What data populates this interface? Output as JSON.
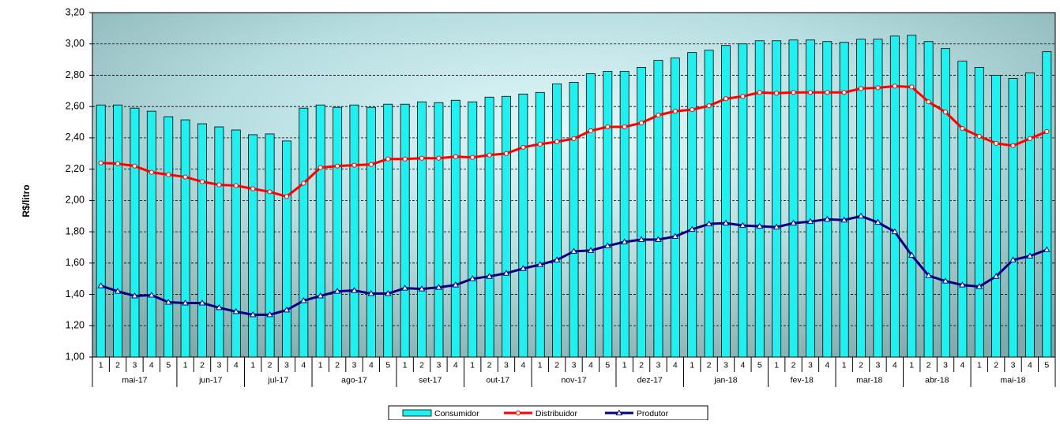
{
  "chart_data": {
    "type": "bar_line",
    "y_label": "R$/litro",
    "ylim": [
      1.0,
      3.2
    ],
    "yticks": [
      {
        "value": 1.0,
        "label": "1,00"
      },
      {
        "value": 1.2,
        "label": "1,20"
      },
      {
        "value": 1.4,
        "label": "1,40"
      },
      {
        "value": 1.6,
        "label": "1,60"
      },
      {
        "value": 1.8,
        "label": "1,80"
      },
      {
        "value": 2.0,
        "label": "2,00"
      },
      {
        "value": 2.2,
        "label": "2,20"
      },
      {
        "value": 2.4,
        "label": "2,40"
      },
      {
        "value": 2.6,
        "label": "2,60"
      },
      {
        "value": 2.8,
        "label": "2,80"
      },
      {
        "value": 3.0,
        "label": "3,00"
      },
      {
        "value": 3.2,
        "label": "3,20"
      }
    ],
    "grid": true,
    "category_groups": [
      {
        "name": "mai-17",
        "categories": [
          "1",
          "2",
          "3",
          "4",
          "5"
        ]
      },
      {
        "name": "jun-17",
        "categories": [
          "1",
          "2",
          "3",
          "4"
        ]
      },
      {
        "name": "jul-17",
        "categories": [
          "1",
          "2",
          "3",
          "4"
        ]
      },
      {
        "name": "ago-17",
        "categories": [
          "1",
          "2",
          "3",
          "4",
          "5"
        ]
      },
      {
        "name": "set-17",
        "categories": [
          "1",
          "2",
          "3",
          "4"
        ]
      },
      {
        "name": "out-17",
        "categories": [
          "1",
          "2",
          "3",
          "4"
        ]
      },
      {
        "name": "nov-17",
        "categories": [
          "1",
          "2",
          "3",
          "4",
          "5"
        ]
      },
      {
        "name": "dez-17",
        "categories": [
          "1",
          "2",
          "3",
          "4"
        ]
      },
      {
        "name": "jan-18",
        "categories": [
          "1",
          "2",
          "3",
          "4",
          "5"
        ]
      },
      {
        "name": "fev-18",
        "categories": [
          "1",
          "2",
          "3",
          "4"
        ]
      },
      {
        "name": "mar-18",
        "categories": [
          "1",
          "2",
          "3",
          "4"
        ]
      },
      {
        "name": "abr-18",
        "categories": [
          "1",
          "2",
          "3",
          "4"
        ]
      },
      {
        "name": "mai-18",
        "categories": [
          "1",
          "2",
          "3",
          "4",
          "5"
        ]
      }
    ],
    "series": [
      {
        "name": "Consumidor",
        "type": "bar",
        "color": "#22f0f0",
        "values": [
          2.61,
          2.61,
          2.59,
          2.57,
          2.535,
          2.515,
          2.49,
          2.47,
          2.45,
          2.42,
          2.425,
          2.38,
          2.59,
          2.61,
          2.595,
          2.61,
          2.595,
          2.615,
          2.615,
          2.63,
          2.625,
          2.64,
          2.63,
          2.66,
          2.665,
          2.68,
          2.69,
          2.745,
          2.755,
          2.81,
          2.825,
          2.825,
          2.85,
          2.895,
          2.91,
          2.945,
          2.96,
          2.99,
          3.0,
          3.02,
          3.02,
          3.025,
          3.025,
          3.015,
          3.01,
          3.03,
          3.03,
          3.05,
          3.055,
          3.015,
          2.97,
          2.89,
          2.85,
          2.8,
          2.78,
          2.815,
          2.95
        ]
      },
      {
        "name": "Distribuidor",
        "type": "line",
        "marker": "circle",
        "color": "#ff0000",
        "values": [
          2.24,
          2.235,
          2.22,
          2.18,
          2.165,
          2.15,
          2.12,
          2.1,
          2.095,
          2.075,
          2.055,
          2.025,
          2.11,
          2.21,
          2.22,
          2.225,
          2.23,
          2.265,
          2.265,
          2.27,
          2.27,
          2.28,
          2.275,
          2.29,
          2.3,
          2.34,
          2.36,
          2.375,
          2.395,
          2.445,
          2.47,
          2.47,
          2.495,
          2.545,
          2.57,
          2.58,
          2.605,
          2.65,
          2.665,
          2.69,
          2.685,
          2.69,
          2.69,
          2.69,
          2.69,
          2.715,
          2.72,
          2.73,
          2.725,
          2.63,
          2.565,
          2.46,
          2.41,
          2.365,
          2.35,
          2.395,
          2.44
        ]
      },
      {
        "name": "Produtor",
        "type": "line",
        "marker": "triangle",
        "color": "#000080",
        "values": [
          1.455,
          1.42,
          1.39,
          1.395,
          1.35,
          1.345,
          1.345,
          1.315,
          1.29,
          1.27,
          1.27,
          1.3,
          1.36,
          1.39,
          1.42,
          1.425,
          1.405,
          1.405,
          1.44,
          1.435,
          1.445,
          1.46,
          1.5,
          1.515,
          1.535,
          1.565,
          1.59,
          1.62,
          1.675,
          1.68,
          1.71,
          1.735,
          1.75,
          1.75,
          1.77,
          1.815,
          1.85,
          1.855,
          1.84,
          1.835,
          1.83,
          1.855,
          1.865,
          1.88,
          1.875,
          1.9,
          1.86,
          1.8,
          1.65,
          1.52,
          1.485,
          1.46,
          1.45,
          1.515,
          1.62,
          1.645,
          1.685
        ]
      }
    ]
  }
}
